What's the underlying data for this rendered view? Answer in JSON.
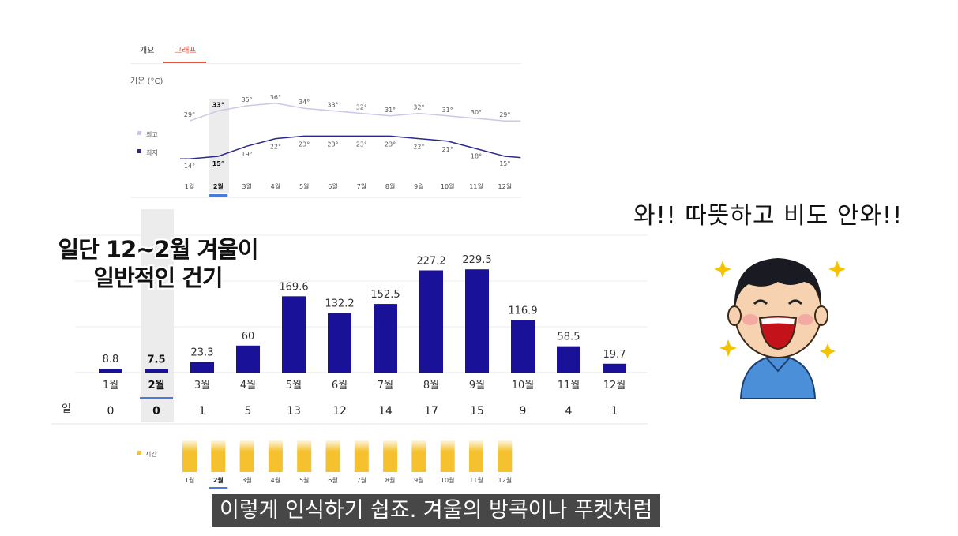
{
  "tabs": [
    {
      "label": "개요",
      "active": false
    },
    {
      "label": "그래프",
      "active": true
    }
  ],
  "temperature": {
    "axis_title": "기온 (°C)",
    "legend": {
      "high": "최고",
      "low": "최저"
    },
    "months": [
      "1월",
      "2월",
      "3월",
      "4월",
      "5월",
      "6월",
      "7월",
      "8월",
      "9월",
      "10월",
      "11월",
      "12월"
    ],
    "selected_month_index": 1,
    "high": [
      29,
      33,
      35,
      36,
      34,
      33,
      32,
      31,
      32,
      31,
      30,
      29
    ],
    "low": [
      14,
      15,
      19,
      22,
      23,
      23,
      23,
      23,
      22,
      21,
      18,
      15
    ],
    "high_labels": [
      "29°",
      "33°",
      "35°",
      "36°",
      "34°",
      "33°",
      "32°",
      "31°",
      "32°",
      "31°",
      "30°",
      "29°"
    ],
    "low_labels": [
      "14°",
      "15°",
      "19°",
      "22°",
      "23°",
      "23°",
      "23°",
      "23°",
      "22°",
      "21°",
      "18°",
      "15°"
    ],
    "colors": {
      "high": "#c9c9e8",
      "low": "#2b2a8a",
      "highlight": "#4a7bd8",
      "accent": "#e4553b"
    }
  },
  "chart_data": {
    "type": "bar",
    "categories": [
      "1월",
      "2월",
      "3월",
      "4월",
      "5월",
      "6월",
      "7월",
      "8월",
      "9월",
      "10월",
      "11월",
      "12월"
    ],
    "values": [
      8.8,
      7.5,
      23.3,
      60,
      169.6,
      132.2,
      152.5,
      227.2,
      229.5,
      116.9,
      58.5,
      19.7
    ],
    "value_labels": [
      "8.8",
      "7.5",
      "23.3",
      "60",
      "169.6",
      "132.2",
      "152.5",
      "227.2",
      "229.5",
      "116.9",
      "58.5",
      "19.7"
    ],
    "rain_days_label": "일",
    "rain_days": [
      "0",
      "0",
      "1",
      "5",
      "13",
      "12",
      "14",
      "17",
      "15",
      "9",
      "4",
      "1"
    ],
    "bar_color": "#1a1199",
    "selected_index": 1,
    "ylim": [
      0,
      250
    ]
  },
  "sunshine": {
    "legend": "시간",
    "months": [
      "1월",
      "2월",
      "3월",
      "4월",
      "5월",
      "6월",
      "7월",
      "8월",
      "9월",
      "10월",
      "11월",
      "12월"
    ],
    "bar_color": "#f5c12e"
  },
  "overlay": {
    "title_line1": "일단 12~2월 겨울이",
    "title_line2": "일반적인 건기",
    "speech": "와!! 따뜻하고 비도 안와!!",
    "subtitle": "이렇게 인식하기 쉽죠. 겨울의 방콕이나 푸켓처럼"
  }
}
